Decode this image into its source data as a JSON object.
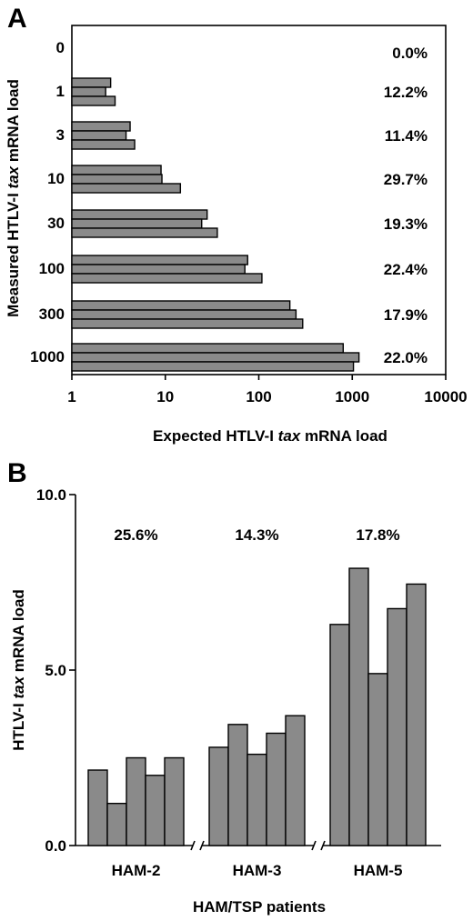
{
  "chart_data": [
    {
      "panel": "A",
      "type": "bar",
      "orientation": "horizontal",
      "xlabel_parts": [
        "Expected HTLV-I ",
        "tax",
        " mRNA load"
      ],
      "ylabel_parts": [
        "Measured HTLV-I ",
        "tax",
        " mRNA load"
      ],
      "x_scale": "log",
      "xlim": [
        1,
        10000
      ],
      "x_ticks": [
        "1",
        "10",
        "100",
        "1000",
        "10000"
      ],
      "categories": [
        "0",
        "1",
        "3",
        "10",
        "30",
        "100",
        "300",
        "1000"
      ],
      "groups": [
        {
          "category": "0",
          "values": [],
          "label": "0.0%"
        },
        {
          "category": "1",
          "values": [
            2.6,
            2.3,
            2.9
          ],
          "label": "12.2%"
        },
        {
          "category": "3",
          "values": [
            4.2,
            3.8,
            4.7
          ],
          "label": "11.4%"
        },
        {
          "category": "10",
          "values": [
            9,
            9.2,
            14.5
          ],
          "label": "29.7%"
        },
        {
          "category": "30",
          "values": [
            28,
            24.5,
            36
          ],
          "label": "19.3%"
        },
        {
          "category": "100",
          "values": [
            76,
            71,
            108
          ],
          "label": "22.4%"
        },
        {
          "category": "300",
          "values": [
            215,
            250,
            295
          ],
          "label": "17.9%"
        },
        {
          "category": "1000",
          "values": [
            800,
            1180,
            1030
          ],
          "label": "22.0%"
        }
      ]
    },
    {
      "panel": "B",
      "type": "bar",
      "ylabel_parts": [
        "HTLV-I ",
        "tax",
        " mRNA load"
      ],
      "xlabel": "HAM/TSP patients",
      "ylim": [
        0,
        10
      ],
      "y_ticks": [
        "0.0",
        "5.0",
        "10.0"
      ],
      "groups": [
        {
          "category": "HAM-2",
          "values": [
            2.15,
            1.2,
            2.5,
            2.0,
            2.5
          ],
          "label": "25.6%"
        },
        {
          "category": "HAM-3",
          "values": [
            2.8,
            3.45,
            2.6,
            3.2,
            3.7
          ],
          "label": "14.3%"
        },
        {
          "category": "HAM-5",
          "values": [
            6.3,
            7.9,
            4.9,
            6.75,
            7.45
          ],
          "label": "17.8%"
        }
      ]
    }
  ]
}
